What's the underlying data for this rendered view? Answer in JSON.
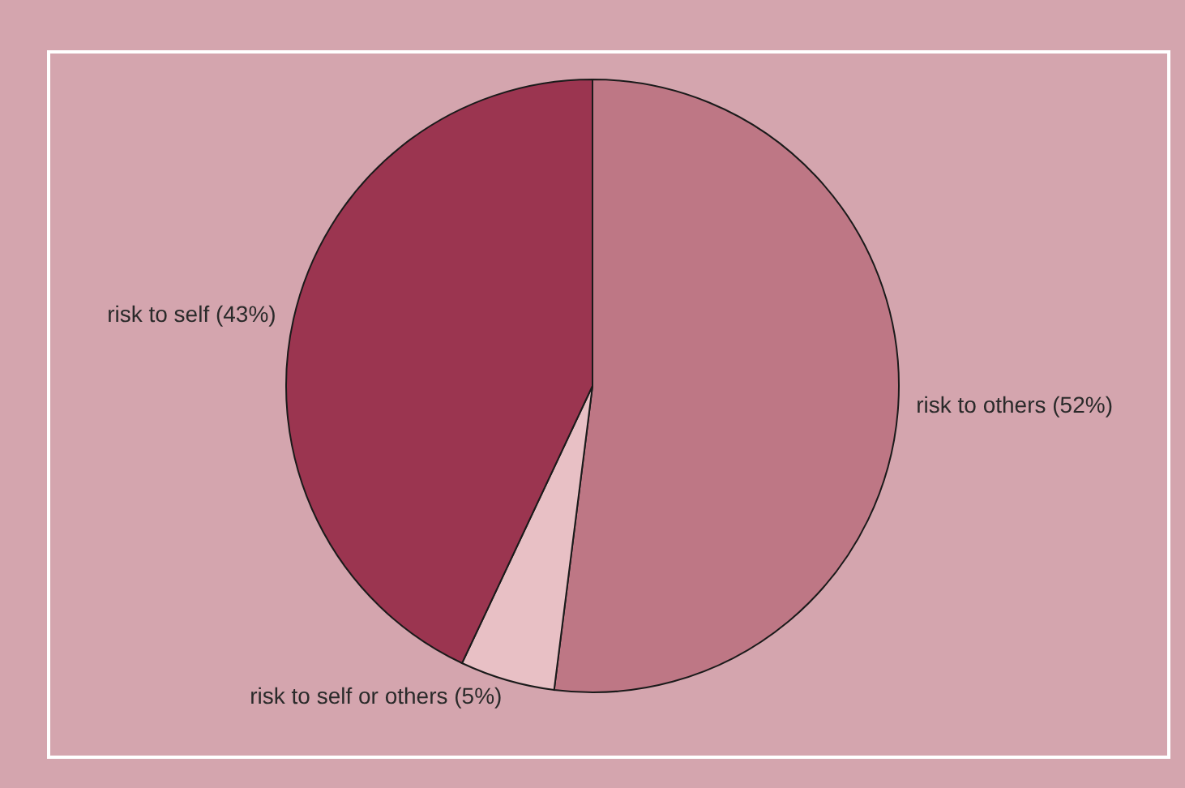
{
  "chart_data": {
    "type": "pie",
    "categories": [
      "risk to others (52%)",
      "risk to self or others (5%)",
      "risk to self (43%)"
    ],
    "values": [
      52,
      5,
      43
    ],
    "colors": [
      "#be7785",
      "#e8c0c5",
      "#9b3550"
    ]
  }
}
